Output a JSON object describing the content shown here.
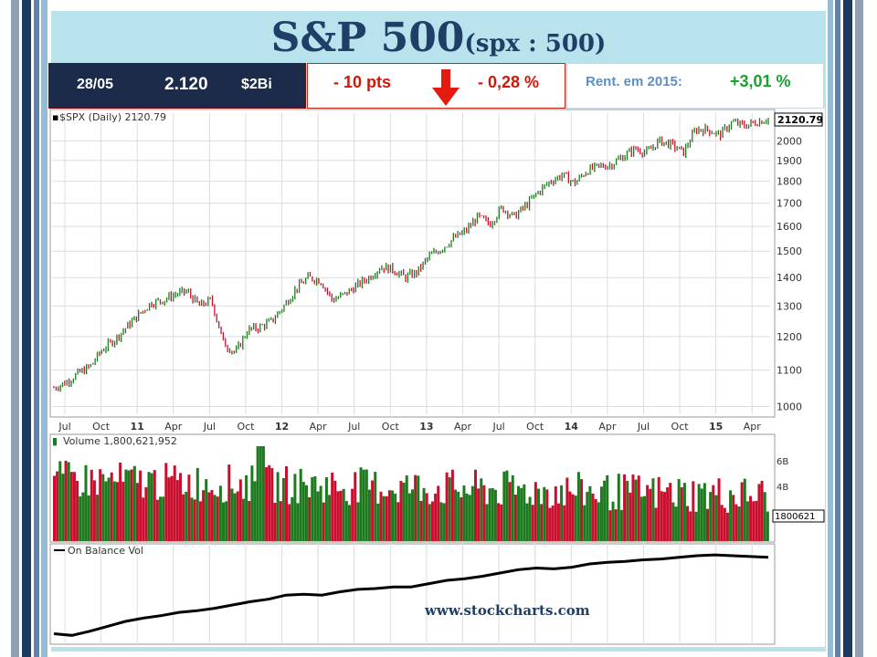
{
  "header": {
    "title": "S&P 500",
    "subtitle": "(spx : 500)"
  },
  "summary": {
    "date": "28/05",
    "close": "2.120",
    "volume_label": "$2Bi",
    "change_pts": "-  10 pts",
    "change_pct": "- 0,28 %",
    "ytd_label": "Rent. em 2015:",
    "ytd_value": "+3,01 %"
  },
  "colors": {
    "up": "#1e7a1e",
    "down": "#c8102e",
    "navy": "#1b2b49",
    "obv_line": "#000000",
    "grid": "#dcdcdc"
  },
  "icons": {
    "direction": "arrow-down-icon"
  },
  "chart_data": [
    {
      "type": "line",
      "title": "$SPX (Daily) 2120.79",
      "last_value_label": "2120.79",
      "scale": "log",
      "ylim": [
        980,
        2150
      ],
      "yticks": [
        "1000",
        "1100",
        "1200",
        "1300",
        "1400",
        "1500",
        "1600",
        "1700",
        "1800",
        "1900",
        "2000"
      ],
      "x_ticks": [
        "Jul",
        "Oct",
        "11",
        "Apr",
        "Jul",
        "Oct",
        "12",
        "Apr",
        "Jul",
        "Oct",
        "13",
        "Apr",
        "Jul",
        "Oct",
        "14",
        "Apr",
        "Jul",
        "Oct",
        "15",
        "Apr"
      ],
      "x": [
        "2010-06",
        "2010-07",
        "2010-08",
        "2010-09",
        "2010-10",
        "2010-11",
        "2010-12",
        "2011-01",
        "2011-02",
        "2011-03",
        "2011-04",
        "2011-05",
        "2011-06",
        "2011-07",
        "2011-08",
        "2011-09",
        "2011-10",
        "2011-11",
        "2011-12",
        "2012-01",
        "2012-02",
        "2012-03",
        "2012-04",
        "2012-05",
        "2012-06",
        "2012-07",
        "2012-08",
        "2012-09",
        "2012-10",
        "2012-11",
        "2012-12",
        "2013-01",
        "2013-02",
        "2013-03",
        "2013-04",
        "2013-05",
        "2013-06",
        "2013-07",
        "2013-08",
        "2013-09",
        "2013-10",
        "2013-11",
        "2013-12",
        "2014-01",
        "2014-02",
        "2014-03",
        "2014-04",
        "2014-05",
        "2014-06",
        "2014-07",
        "2014-08",
        "2014-09",
        "2014-10",
        "2014-11",
        "2014-12",
        "2015-01",
        "2015-02",
        "2015-03",
        "2015-04",
        "2015-05"
      ],
      "series": [
        {
          "values": [
            1050,
            1065,
            1090,
            1110,
            1160,
            1190,
            1230,
            1270,
            1310,
            1320,
            1340,
            1350,
            1300,
            1320,
            1180,
            1150,
            1220,
            1230,
            1250,
            1300,
            1360,
            1400,
            1390,
            1320,
            1340,
            1370,
            1400,
            1440,
            1430,
            1400,
            1420,
            1480,
            1510,
            1550,
            1580,
            1640,
            1610,
            1680,
            1640,
            1690,
            1750,
            1800,
            1830,
            1790,
            1850,
            1870,
            1880,
            1920,
            1960,
            1940,
            2000,
            1980,
            1940,
            2060,
            2060,
            2030,
            2100,
            2080,
            2100,
            2120
          ]
        }
      ]
    },
    {
      "type": "bar",
      "title": "Volume 1,800,621,952",
      "last_value_label": "1800621",
      "yticks": [
        "4B",
        "6B"
      ],
      "ylim": [
        0,
        8
      ]
    },
    {
      "type": "line",
      "series": [
        {
          "name": "On Balance Vol",
          "values": [
            0.05,
            0.03,
            0.08,
            0.14,
            0.2,
            0.24,
            0.27,
            0.31,
            0.33,
            0.36,
            0.4,
            0.44,
            0.47,
            0.52,
            0.53,
            0.52,
            0.56,
            0.59,
            0.6,
            0.62,
            0.62,
            0.66,
            0.7,
            0.72,
            0.75,
            0.79,
            0.83,
            0.85,
            0.84,
            0.86,
            0.9,
            0.92,
            0.93,
            0.95,
            0.96,
            0.98,
            1.0,
            1.01,
            1.0,
            0.99,
            0.98
          ]
        }
      ]
    }
  ],
  "footer": {
    "source": "www.stockcharts.com"
  }
}
